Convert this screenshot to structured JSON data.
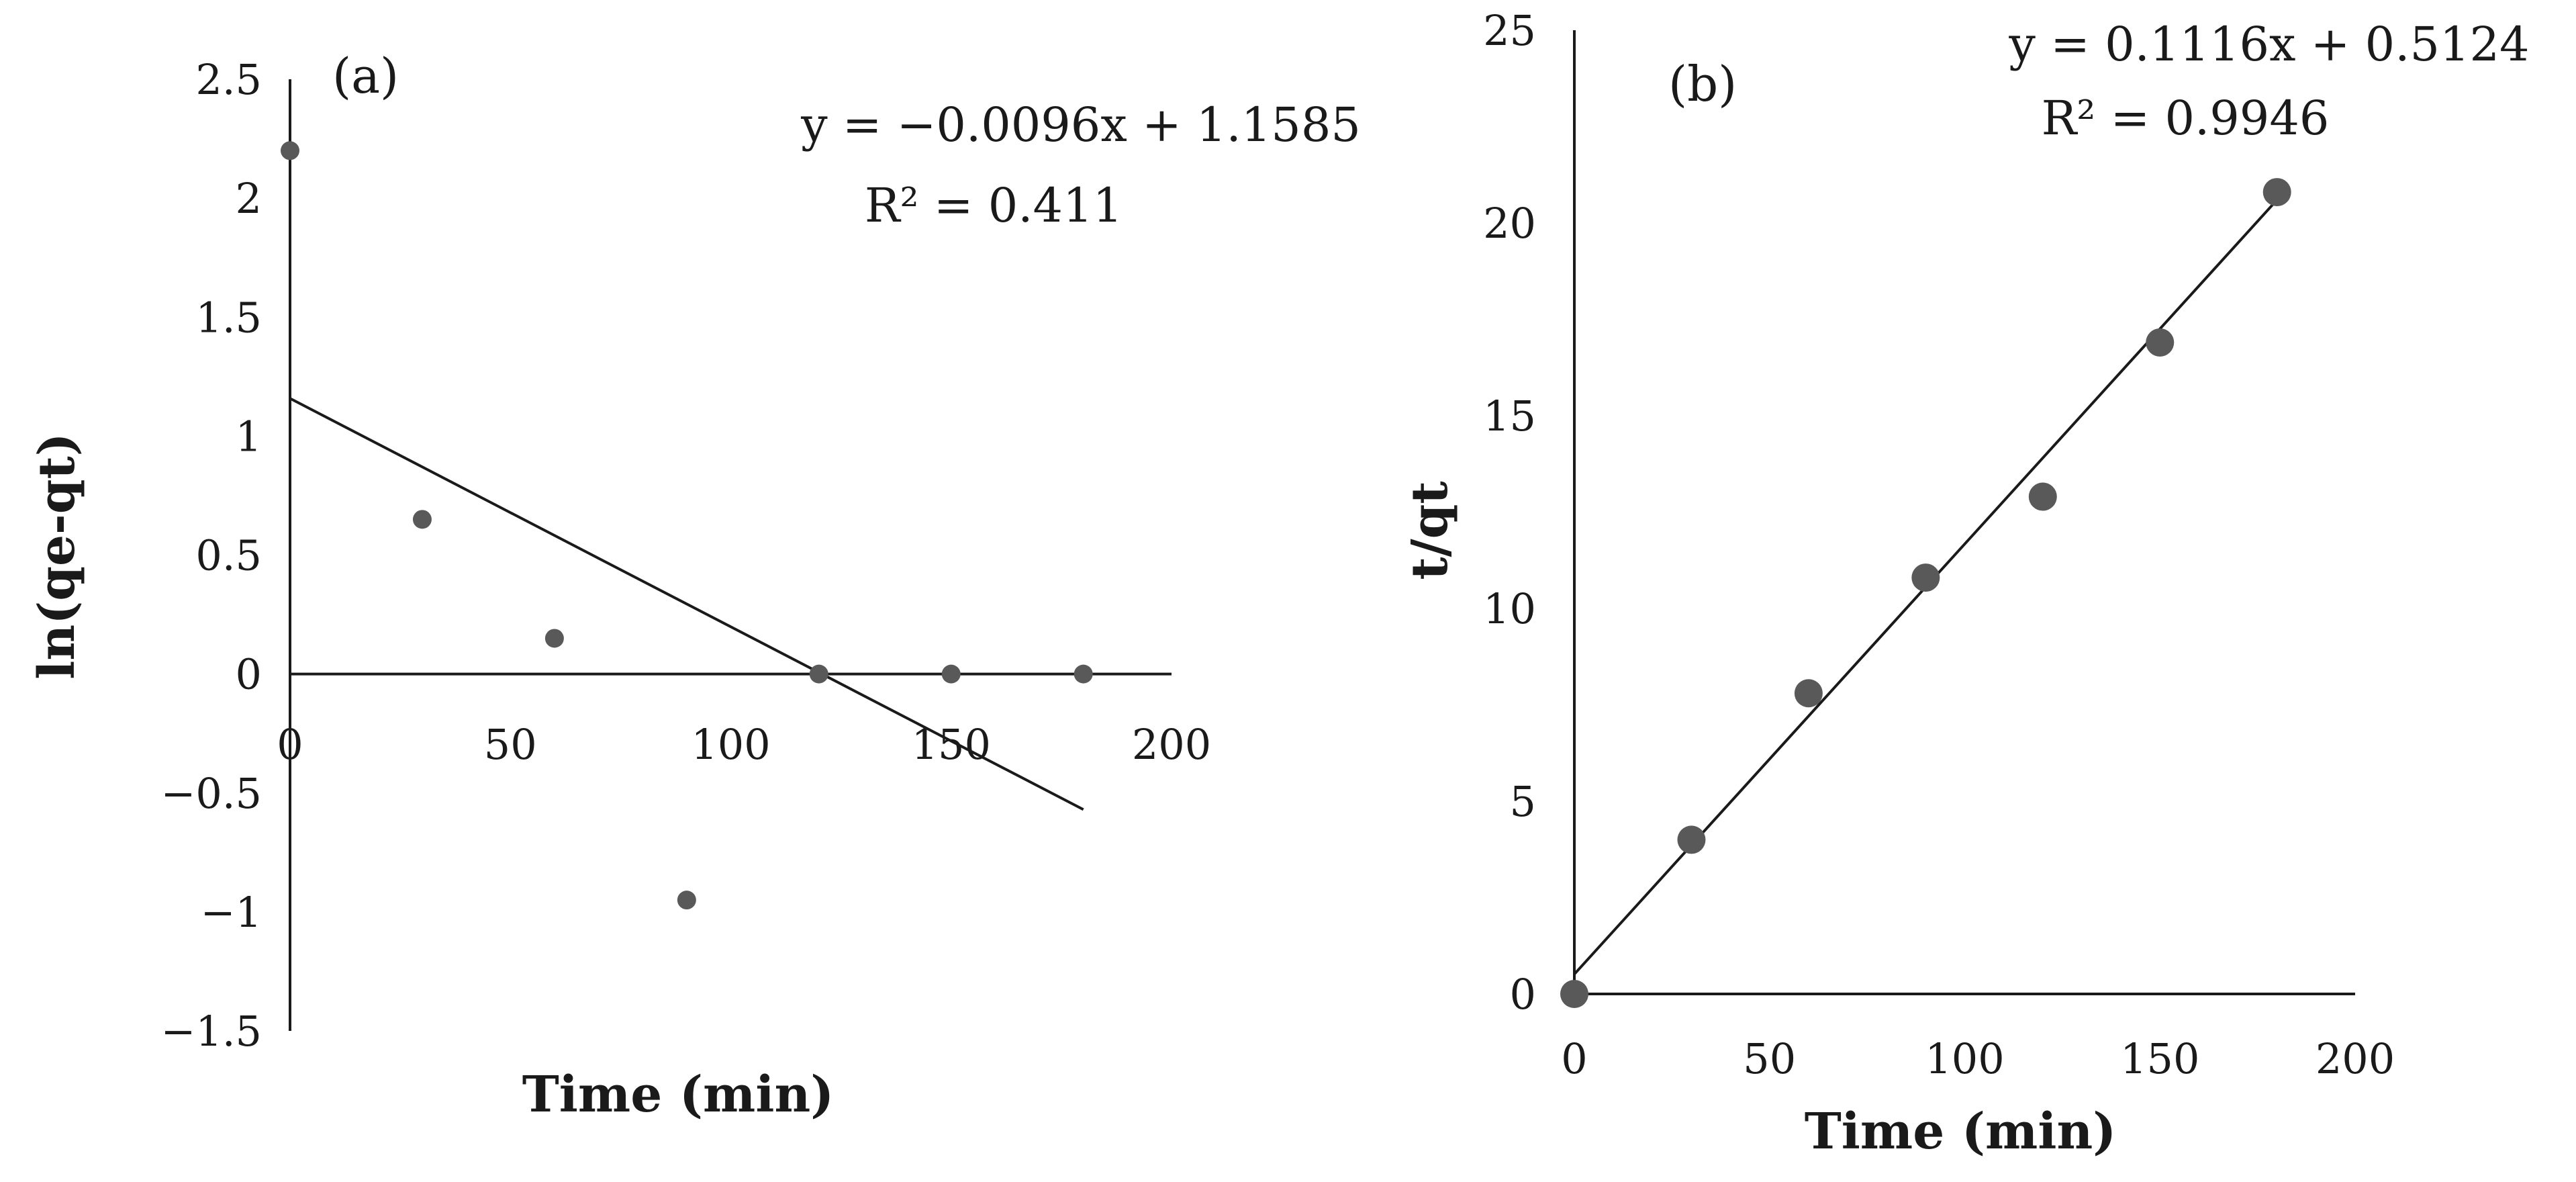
{
  "chart_data": [
    {
      "type": "scatter",
      "panel_label": "(a)",
      "xlabel": "Time (min)",
      "ylabel": "ln(qe-qt)",
      "xlim": [
        0,
        200
      ],
      "ylim": [
        -1.5,
        2.5
      ],
      "x_ticks": [
        "0",
        "50",
        "100",
        "150",
        "200"
      ],
      "y_ticks": [
        "2.5",
        "2",
        "1.5",
        "1",
        "0.5",
        "0",
        "−0.5",
        "−1",
        "−1.5"
      ],
      "points": [
        {
          "x": 0,
          "y": 2.2
        },
        {
          "x": 30,
          "y": 0.65
        },
        {
          "x": 60,
          "y": 0.15
        },
        {
          "x": 90,
          "y": -0.95
        },
        {
          "x": 120,
          "y": 0.0
        },
        {
          "x": 150,
          "y": 0.0
        },
        {
          "x": 180,
          "y": 0.0
        }
      ],
      "trendline": {
        "slope": -0.0096,
        "intercept": 1.1585,
        "x_range": [
          0,
          180
        ]
      },
      "equation": "y = −0.0096x + 1.1585",
      "r_squared": "R² = 0.411",
      "marker_color": "#595959",
      "line_color": "#1a1a1a",
      "grid": false
    },
    {
      "type": "scatter",
      "panel_label": "(b)",
      "xlabel": "Time (min)",
      "ylabel": "t/qt",
      "xlim": [
        0,
        200
      ],
      "ylim": [
        0,
        25
      ],
      "x_ticks": [
        "0",
        "50",
        "100",
        "150",
        "200"
      ],
      "y_ticks": [
        "25",
        "20",
        "15",
        "10",
        "5",
        "0"
      ],
      "points": [
        {
          "x": 0,
          "y": 0
        },
        {
          "x": 30,
          "y": 4.0
        },
        {
          "x": 60,
          "y": 7.8
        },
        {
          "x": 90,
          "y": 10.8
        },
        {
          "x": 120,
          "y": 12.9
        },
        {
          "x": 150,
          "y": 16.9
        },
        {
          "x": 180,
          "y": 20.8
        }
      ],
      "trendline": {
        "slope": 0.1116,
        "intercept": 0.5124,
        "x_range": [
          0,
          180
        ]
      },
      "equation": "y = 0.1116x + 0.5124",
      "r_squared": "R² = 0.9946",
      "marker_color": "#595959",
      "line_color": "#1a1a1a",
      "grid": false
    }
  ]
}
